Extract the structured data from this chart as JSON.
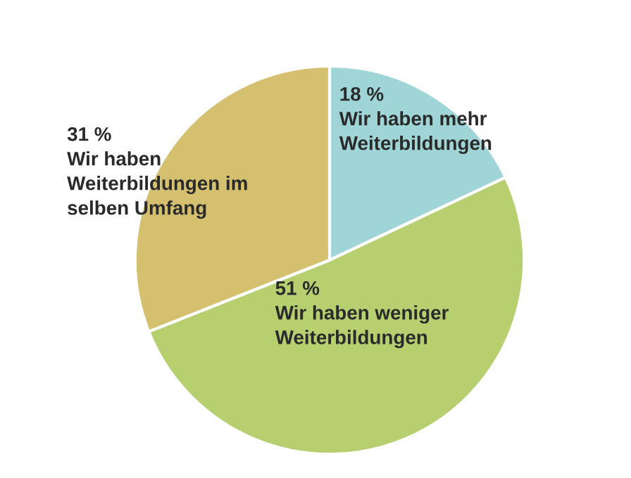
{
  "chart_data": {
    "type": "pie",
    "categories": [
      "Wir haben mehr Weiterbildungen",
      "Wir haben weniger Weiterbildungen",
      "Wir haben Weiterbildungen im selben Umfang"
    ],
    "values": [
      18,
      51,
      31
    ],
    "value_labels": [
      "18 %",
      "51 %",
      "31 %"
    ],
    "colors": [
      "#9fd5d6",
      "#b6cf6f",
      "#d4c06f"
    ]
  }
}
